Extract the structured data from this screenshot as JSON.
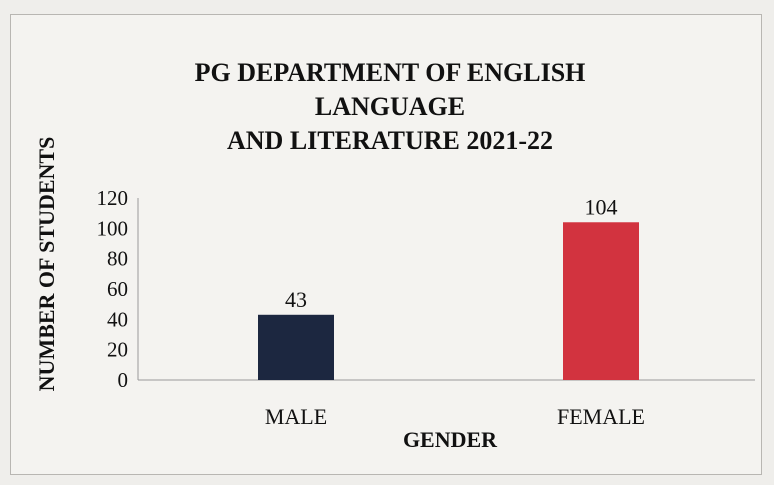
{
  "chart_data": {
    "type": "bar",
    "title": "PG DEPARTMENT OF ENGLISH LANGUAGE AND LITERATURE 2021-22",
    "title_lines": [
      "PG DEPARTMENT OF ENGLISH LANGUAGE",
      "AND LITERATURE 2021-22"
    ],
    "xlabel": "GENDER",
    "ylabel": "NUMBER OF STUDENTS",
    "categories": [
      "MALE",
      "FEMALE"
    ],
    "values": [
      43,
      104
    ],
    "data_labels": [
      "43",
      "104"
    ],
    "colors": [
      "#1c2740",
      "#d2333f"
    ],
    "ylim": [
      0,
      120
    ],
    "yticks": [
      "0",
      "20",
      "40",
      "60",
      "80",
      "100",
      "120"
    ],
    "grid": false,
    "legend": "none"
  }
}
